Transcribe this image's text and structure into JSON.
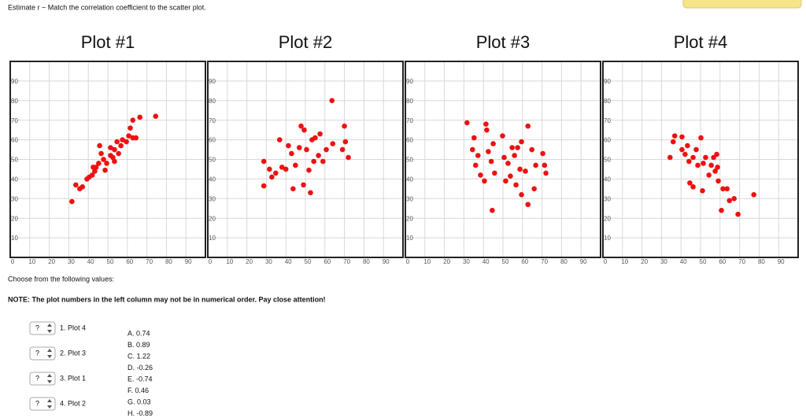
{
  "header": {
    "instruction": "Estimate r ~ Match the correlation coefficient to the scatter plot."
  },
  "chart_data": [
    {
      "type": "scatter",
      "title": "Plot #1",
      "color": "#ee1111",
      "grid": true,
      "xlim": [
        0,
        100
      ],
      "ylim": [
        0,
        100
      ],
      "xticks": [
        0,
        10,
        20,
        30,
        40,
        50,
        60,
        70,
        80,
        90
      ],
      "yticks": [
        10,
        20,
        30,
        40,
        50,
        60,
        70,
        80,
        90
      ],
      "x": [
        31.6,
        33.6,
        35.6,
        37,
        39.3,
        40.5,
        42,
        43.3,
        42.5,
        44,
        45.3,
        45.8,
        46.6,
        47.8,
        48.6,
        49.4,
        51.4,
        51.4,
        52.6,
        53.4,
        54.7,
        55.5,
        56.7,
        57.5,
        59.5,
        60.7,
        61.5,
        62.8,
        64.4,
        62.8,
        66.4,
        74.5,
        53.4
      ],
      "values": [
        28.5,
        37,
        35,
        36,
        40,
        41,
        42,
        44,
        46,
        46,
        48,
        57,
        53,
        50,
        44.5,
        48,
        56,
        52,
        51,
        55,
        59,
        53,
        57,
        60,
        59,
        62,
        66,
        61,
        61,
        70,
        71.5,
        72,
        49
      ]
    },
    {
      "type": "scatter",
      "title": "Plot #2",
      "color": "#ee1111",
      "grid": true,
      "xlim": [
        0,
        100
      ],
      "ylim": [
        0,
        100
      ],
      "xticks": [
        0,
        10,
        20,
        30,
        40,
        50,
        60,
        70,
        80,
        90
      ],
      "yticks": [
        10,
        20,
        30,
        40,
        50,
        60,
        70,
        80,
        90
      ],
      "x": [
        28.7,
        28.7,
        32.8,
        31.6,
        34.8,
        36.8,
        38,
        40,
        41.3,
        42.9,
        43.7,
        44.9,
        46.9,
        47.8,
        49,
        49.4,
        50.6,
        51.8,
        52.6,
        53.4,
        54.3,
        55,
        56.7,
        57.5,
        59,
        60.7,
        63.6,
        64,
        69,
        70,
        70.5,
        72
      ],
      "values": [
        36.5,
        49,
        41,
        45,
        43,
        60,
        46,
        45,
        57,
        53,
        35,
        47,
        56,
        67,
        37,
        65,
        55,
        44.5,
        33,
        60,
        49,
        61,
        52,
        63,
        49,
        55,
        80,
        58,
        55,
        67,
        59,
        51
      ]
    },
    {
      "type": "scatter",
      "title": "Plot #3",
      "color": "#ee1111",
      "grid": true,
      "xlim": [
        0,
        100
      ],
      "ylim": [
        0,
        100
      ],
      "xticks": [
        0,
        10,
        20,
        30,
        40,
        50,
        60,
        70,
        80,
        90
      ],
      "yticks": [
        10,
        20,
        30,
        40,
        50,
        60,
        70,
        80,
        90
      ],
      "x": [
        31.6,
        35.2,
        41.3,
        41.7,
        34.4,
        37.2,
        36,
        38.5,
        40.5,
        42.5,
        44,
        45,
        44.5,
        45.7,
        49.8,
        50.6,
        51.4,
        52.6,
        53.8,
        54.7,
        55.9,
        56.7,
        57.5,
        58.7,
        59.5,
        59.5,
        62.8,
        62.8,
        61.5,
        64.8,
        66.8,
        66,
        70.4,
        71.3,
        72
      ],
      "values": [
        68.7,
        61,
        68,
        65,
        55,
        52,
        47,
        42,
        39,
        54,
        49,
        58,
        24,
        43,
        62,
        51,
        39,
        48,
        41.5,
        56,
        52,
        37,
        56,
        45,
        59,
        32,
        67,
        27,
        44,
        55,
        47,
        35,
        53,
        47,
        43
      ]
    },
    {
      "type": "scatter",
      "title": "Plot #4",
      "color": "#ee1111",
      "grid": true,
      "xlim": [
        0,
        100
      ],
      "ylim": [
        0,
        100
      ],
      "xticks": [
        0,
        10,
        20,
        30,
        40,
        50,
        60,
        70,
        80,
        90
      ],
      "yticks": [
        10,
        20,
        30,
        40,
        50,
        60,
        70,
        80,
        90
      ],
      "x": [
        34.4,
        36,
        36.8,
        40.5,
        40.5,
        42.1,
        43.3,
        44.1,
        44.5,
        46.2,
        46.2,
        47.8,
        48.6,
        50.2,
        51,
        51.4,
        52.6,
        54.3,
        55.5,
        56.7,
        57.5,
        58.3,
        59.1,
        60.7,
        61.5,
        63.6,
        64.8,
        67.2,
        69.2,
        77.3,
        58.7
      ],
      "values": [
        51,
        59,
        62,
        61.5,
        55,
        52.6,
        57,
        49,
        38,
        36,
        51,
        55,
        47,
        61,
        34,
        48,
        51,
        42,
        47,
        51,
        44,
        52.6,
        39,
        24,
        35,
        35,
        29,
        30,
        22,
        32,
        46
      ]
    }
  ],
  "question": {
    "prompt": "Choose from the following values:",
    "note": "NOTE: The plot numbers in the left column may not be in numerical order. Pay close attention!",
    "items": [
      {
        "select": "?",
        "label": "1. Plot 4"
      },
      {
        "select": "?",
        "label": "2. Plot 3"
      },
      {
        "select": "?",
        "label": "3. Plot 1"
      },
      {
        "select": "?",
        "label": "4. Plot 2"
      }
    ],
    "options": [
      "A. 0.74",
      "B. 0.89",
      "C. 1.22",
      "D. -0.26",
      "E. -0.74",
      "F. 0.46",
      "G. 0.03",
      "H. -0.89"
    ]
  }
}
